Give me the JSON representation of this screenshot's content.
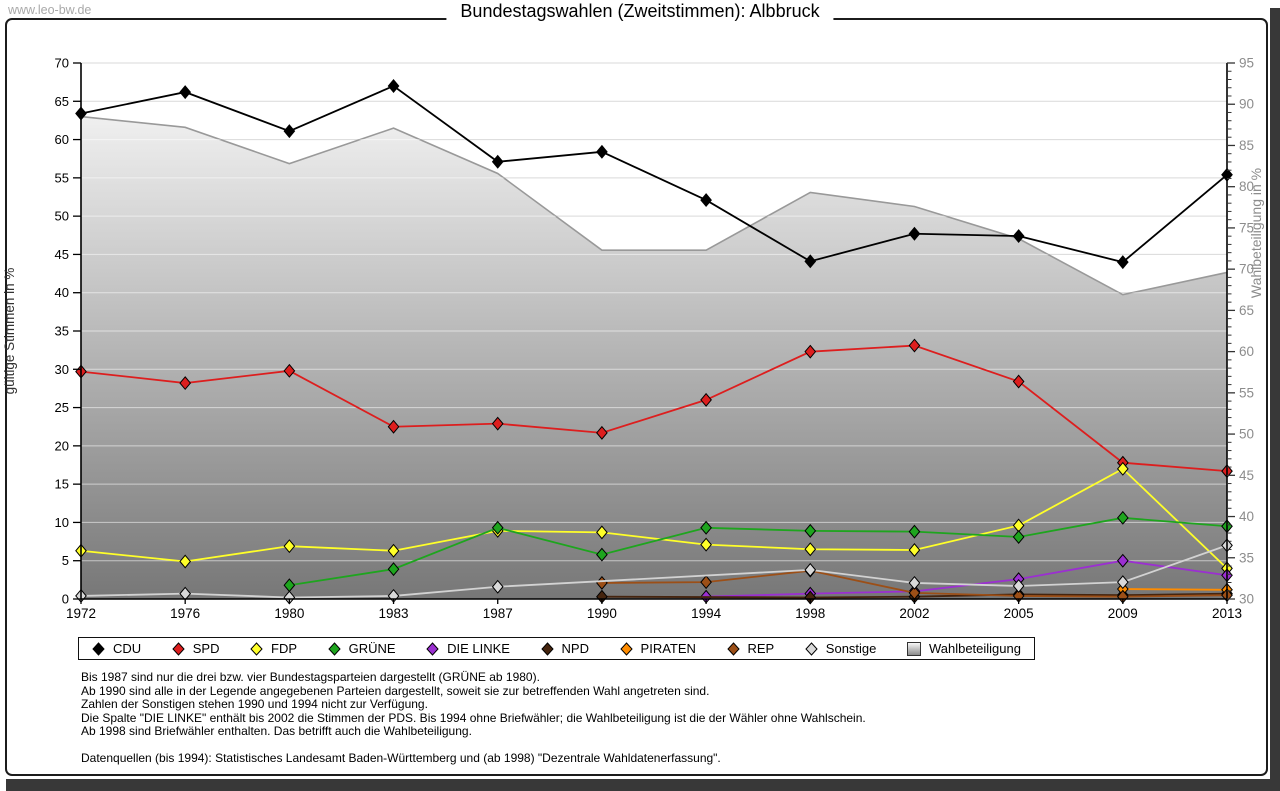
{
  "watermark": "www.leo-bw.de",
  "title": "Bundestagswahlen (Zweitstimmen): Albbruck",
  "chart_data": {
    "type": "line",
    "title": "Bundestagswahlen (Zweitstimmen): Albbruck",
    "categories": [
      "1972",
      "1976",
      "1980",
      "1983",
      "1987",
      "1990",
      "1994",
      "1998",
      "2002",
      "2005",
      "2009",
      "2013"
    ],
    "left_axis": {
      "label": "gültige Stimmen in %",
      "min": 0,
      "max": 70,
      "tick_step": 5
    },
    "right_axis": {
      "label": "Wahlbeteiligung in %",
      "min": 30,
      "max": 95,
      "major_tick_step": 5,
      "minor_tick_step": 1
    },
    "grid": true,
    "legend_position": "bottom",
    "series": [
      {
        "name": "CDU",
        "color": "#000000",
        "marker": "diamond",
        "values": [
          63.4,
          66.2,
          61.1,
          67.0,
          57.1,
          58.4,
          52.1,
          44.1,
          47.7,
          47.4,
          44.0,
          55.4
        ]
      },
      {
        "name": "SPD",
        "color": "#dd1e1e",
        "marker": "diamond",
        "values": [
          29.7,
          28.2,
          29.8,
          22.5,
          22.9,
          21.7,
          26.0,
          32.3,
          33.1,
          28.4,
          17.8,
          16.7
        ]
      },
      {
        "name": "FDP",
        "color": "#ffff29",
        "marker": "diamond",
        "values": [
          6.3,
          4.9,
          6.9,
          6.3,
          8.9,
          8.7,
          7.1,
          6.5,
          6.4,
          9.6,
          17.0,
          4.0
        ]
      },
      {
        "name": "GRÜNE",
        "color": "#1ea51e",
        "marker": "diamond",
        "values": [
          null,
          null,
          1.8,
          3.9,
          9.3,
          5.8,
          9.3,
          8.9,
          8.8,
          8.1,
          10.6,
          9.5
        ]
      },
      {
        "name": "DIE LINKE",
        "color": "#9b2fd1",
        "marker": "diamond",
        "values": [
          null,
          null,
          null,
          null,
          null,
          null,
          0.3,
          0.7,
          1.0,
          2.6,
          5.0,
          3.1
        ]
      },
      {
        "name": "NPD",
        "color": "#45240e",
        "marker": "diamond",
        "values": [
          null,
          null,
          null,
          null,
          null,
          0.3,
          null,
          0.2,
          0.3,
          0.6,
          0.5,
          0.7
        ]
      },
      {
        "name": "PIRATEN",
        "color": "#ff8c00",
        "marker": "diamond",
        "values": [
          null,
          null,
          null,
          null,
          null,
          null,
          null,
          null,
          null,
          null,
          1.3,
          1.2
        ]
      },
      {
        "name": "REP",
        "color": "#9c4f17",
        "marker": "diamond",
        "values": [
          null,
          null,
          null,
          null,
          null,
          2.1,
          2.2,
          3.7,
          0.8,
          0.4,
          0.3,
          0.5
        ]
      },
      {
        "name": "Sonstige",
        "color": "#d9d9d9",
        "line_color": "#d2d2d2",
        "marker": "diamond",
        "values": [
          0.4,
          0.7,
          0.2,
          0.4,
          1.6,
          null,
          null,
          3.8,
          2.1,
          1.7,
          2.2,
          7.0
        ]
      }
    ],
    "participation_series": {
      "name": "Wahlbeteiligung",
      "axis": "right",
      "type": "area",
      "stroke": "#999999",
      "fill_top": "#fdfdfd",
      "fill_bottom": "#777777",
      "values": [
        88.5,
        87.2,
        82.8,
        87.1,
        81.6,
        72.3,
        72.3,
        79.3,
        77.6,
        73.7,
        66.9,
        69.6
      ]
    }
  },
  "footnotes": [
    "Bis 1987 sind nur die drei bzw. vier Bundestagsparteien dargestellt (GRÜNE ab 1980).",
    "Ab 1990 sind alle in der Legende angegebenen Parteien dargestellt, soweit sie zur betreffenden Wahl angetreten sind.",
    "Zahlen der Sonstigen stehen 1990 und 1994 nicht zur Verfügung.",
    "Die Spalte \"DIE LINKE\" enthält bis 2002 die Stimmen der PDS. Bis 1994 ohne Briefwähler; die Wahlbeteiligung ist die der Wähler ohne Wahlschein.",
    "Ab 1998 sind Briefwähler enthalten. Das betrifft auch die Wahlbeteiligung.",
    "",
    "Datenquellen (bis 1994): Statistisches Landesamt Baden-Württemberg und (ab 1998) \"Dezentrale Wahldatenerfassung\"."
  ]
}
